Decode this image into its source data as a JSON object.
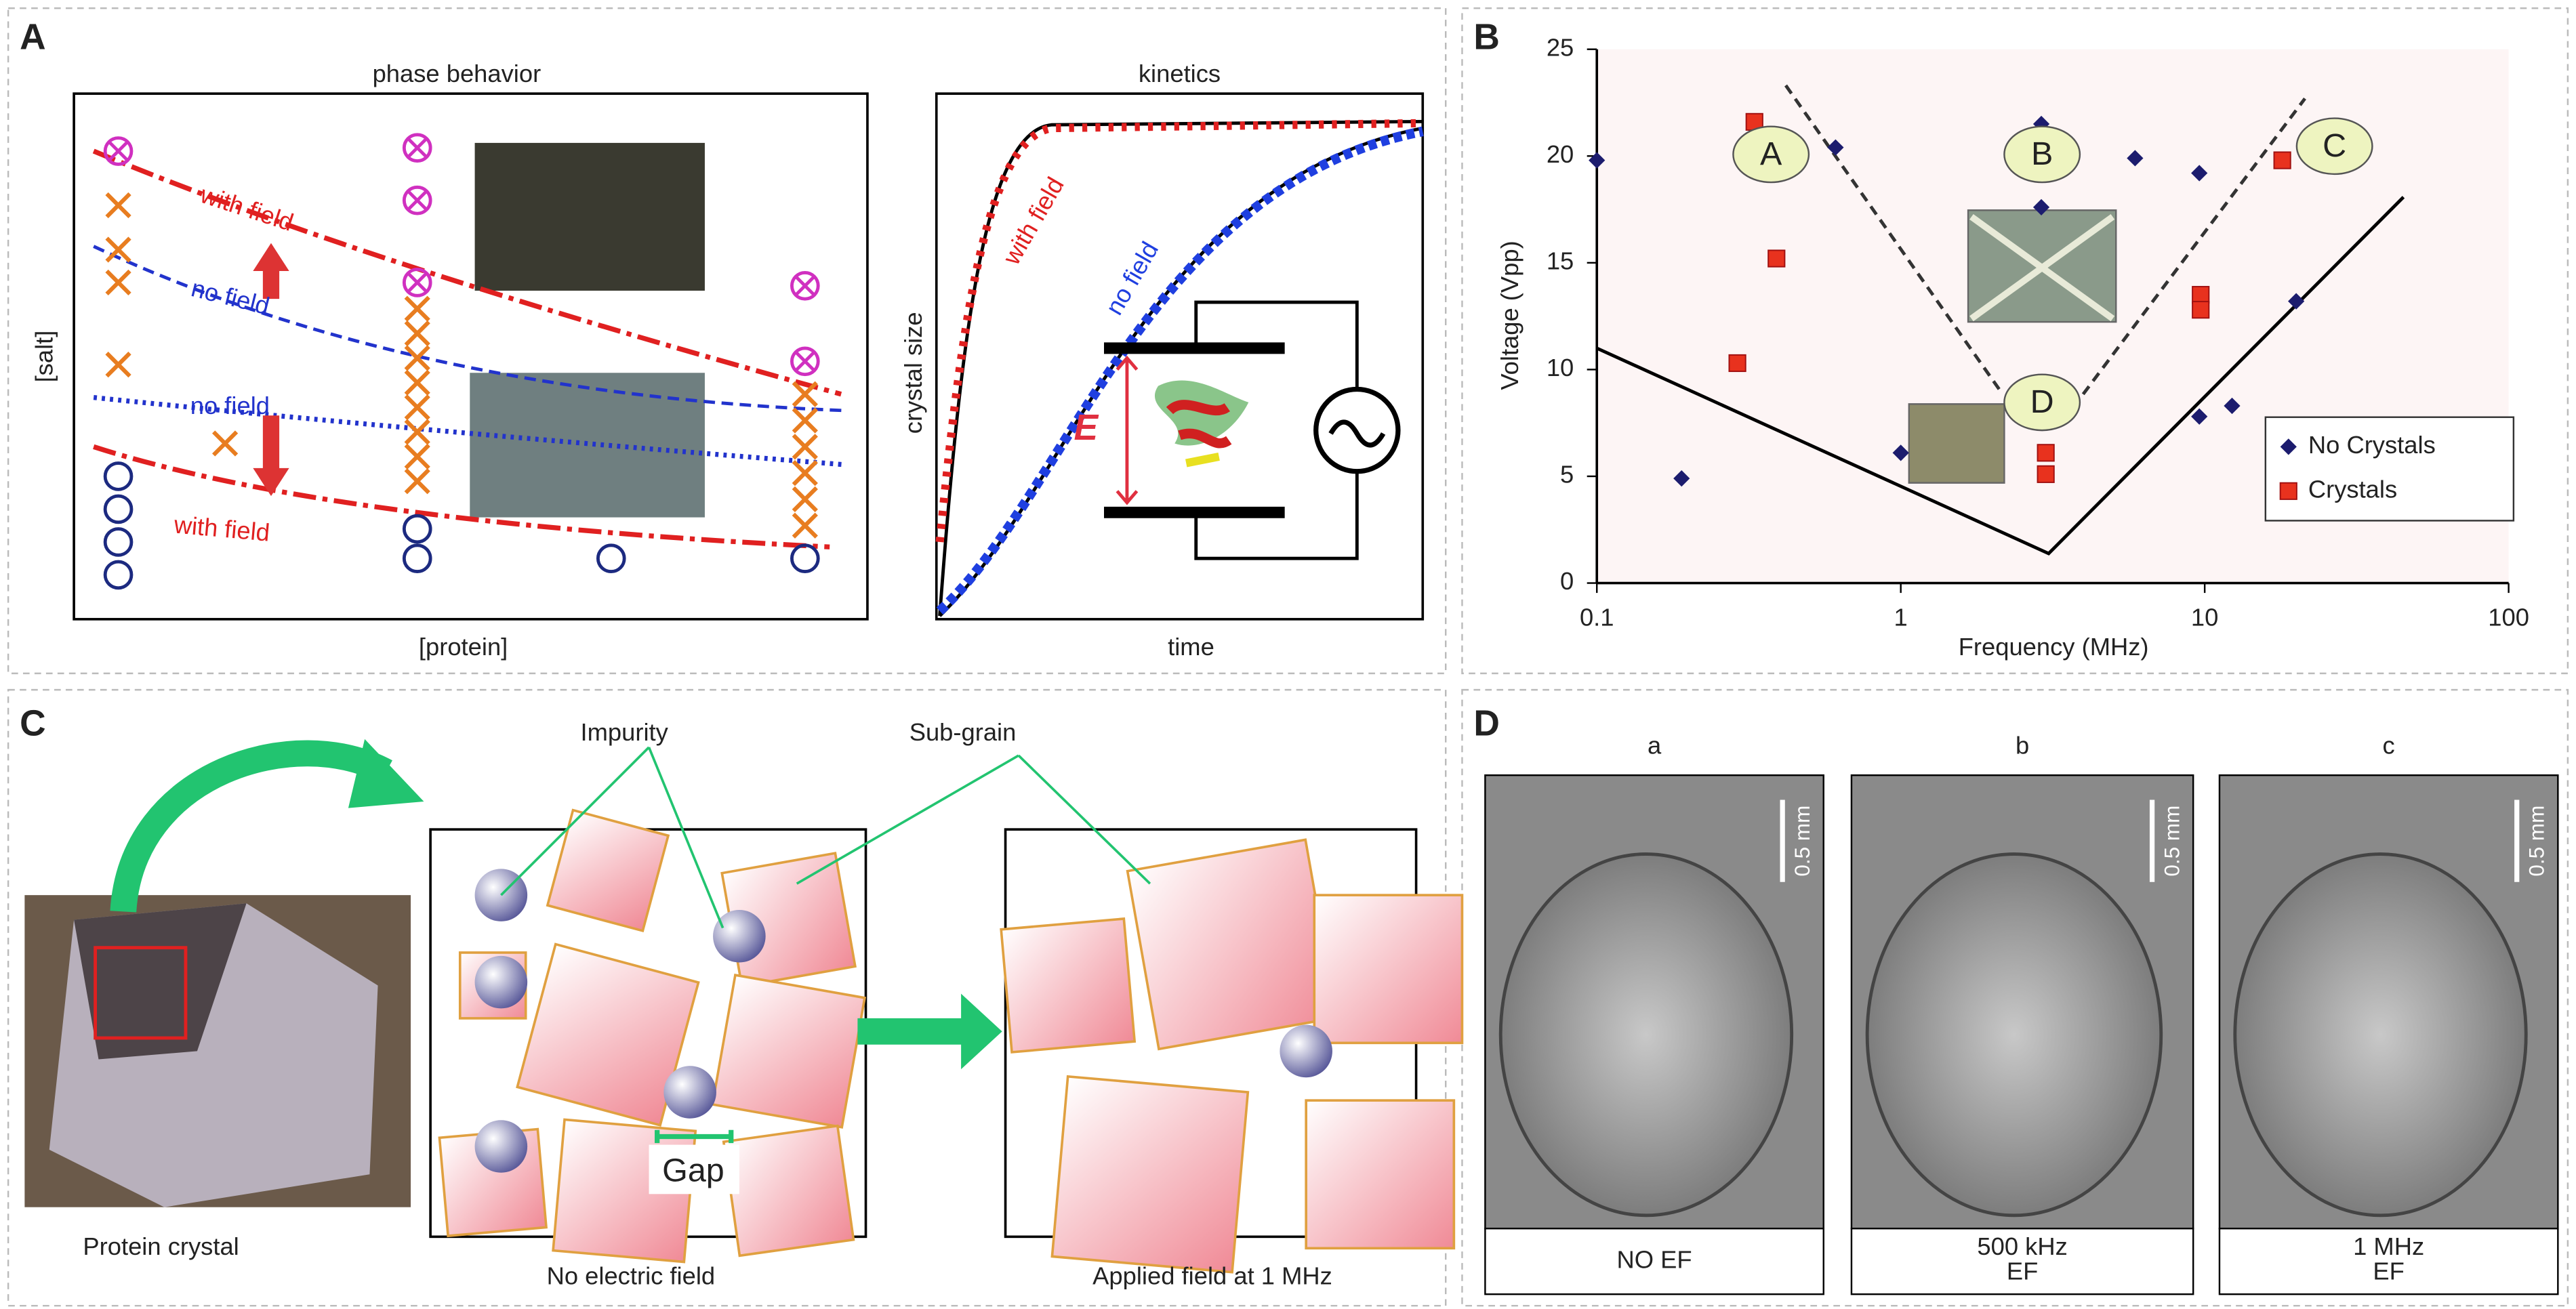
{
  "panel_a": {
    "label": "A",
    "phase": {
      "title": "phase behavior",
      "curve_labels": [
        "with field",
        "no field",
        "no field",
        "with field"
      ],
      "y_label": "[salt]",
      "x_label": "[protein]"
    },
    "kinetics": {
      "title": "kinetics",
      "curve_labels": [
        "with field",
        "no field"
      ],
      "y_label": "crystal size",
      "x_label": "time",
      "field_label": "E"
    }
  },
  "chart_data": {
    "type": "scatter",
    "panel_label": "B",
    "x_label": "Frequency (MHz)",
    "y_label": "Voltage (Vpp)",
    "x_log": true,
    "xlim": [
      0.1,
      100
    ],
    "xticks": [
      0.1,
      1,
      10,
      100
    ],
    "ylim": [
      0,
      25
    ],
    "yticks": [
      0,
      5,
      10,
      15,
      20,
      25
    ],
    "legend": "lower right",
    "region_labels": [
      "A",
      "B",
      "C",
      "D"
    ],
    "series": [
      {
        "name": "No Crystals",
        "color": "#1c1c6e",
        "marker": "diamond",
        "x": [
          0.1,
          0.19,
          0.61,
          1.0,
          2.9,
          2.9,
          5.9,
          9.6,
          9.6,
          12.3,
          20
        ],
        "values": [
          19.8,
          4.9,
          20.4,
          6.1,
          21.5,
          17.6,
          19.9,
          19.2,
          7.8,
          8.3,
          13.2
        ]
      },
      {
        "name": "Crystals",
        "color": "#e8321e",
        "marker": "square",
        "x": [
          0.33,
          0.39,
          0.29,
          3.0,
          3.0,
          9.7,
          9.7,
          18
        ],
        "values": [
          21.6,
          15.2,
          10.3,
          6.1,
          5.1,
          13.5,
          12.8,
          19.8
        ]
      }
    ]
  },
  "panel_c": {
    "label": "C",
    "callouts": [
      "Impurity",
      "Sub-grain",
      "Gap"
    ],
    "captions": [
      "Protein crystal",
      "No electric field",
      "Applied field at 1 MHz"
    ]
  },
  "panel_d": {
    "label": "D",
    "sub_labels": [
      "a",
      "b",
      "c"
    ],
    "scale_bars": [
      "0.5 mm",
      "0.5 mm",
      "0.5 mm"
    ],
    "captions": [
      [
        "NO EF"
      ],
      [
        "500 kHz",
        "EF"
      ],
      [
        "1 MHz",
        "EF"
      ]
    ]
  }
}
